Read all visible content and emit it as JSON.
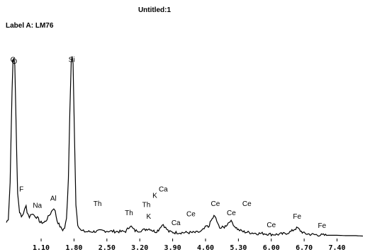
{
  "window": {
    "title": "Untitled:1",
    "label": "Label A: LM76"
  },
  "chart_data": {
    "type": "line",
    "title": "",
    "xlabel": "",
    "ylabel": "",
    "x_ticks": [
      "1.10",
      "1.80",
      "2.50",
      "3.20",
      "3.90",
      "4.60",
      "5.30",
      "6.00",
      "6.70",
      "7.40"
    ],
    "x_tick_values": [
      1.1,
      1.8,
      2.5,
      3.2,
      3.9,
      4.6,
      5.3,
      6.0,
      6.7,
      7.4
    ],
    "xlim": [
      0.36,
      7.95
    ],
    "ylim": [
      0,
      100
    ],
    "spectrum": [
      [
        0.36,
        8
      ],
      [
        0.4,
        10
      ],
      [
        0.44,
        30
      ],
      [
        0.48,
        80
      ],
      [
        0.5,
        96
      ],
      [
        0.52,
        98
      ],
      [
        0.54,
        94
      ],
      [
        0.58,
        45
      ],
      [
        0.6,
        24
      ],
      [
        0.64,
        14
      ],
      [
        0.68,
        11
      ],
      [
        0.72,
        13
      ],
      [
        0.75,
        15
      ],
      [
        0.78,
        17
      ],
      [
        0.8,
        14
      ],
      [
        0.85,
        11
      ],
      [
        0.9,
        13
      ],
      [
        0.95,
        12
      ],
      [
        1.0,
        11
      ],
      [
        1.04,
        10
      ],
      [
        1.08,
        8
      ],
      [
        1.12,
        8
      ],
      [
        1.16,
        8
      ],
      [
        1.2,
        9
      ],
      [
        1.25,
        11
      ],
      [
        1.3,
        13
      ],
      [
        1.34,
        15
      ],
      [
        1.37,
        16
      ],
      [
        1.4,
        14
      ],
      [
        1.44,
        9
      ],
      [
        1.48,
        7
      ],
      [
        1.52,
        5
      ],
      [
        1.56,
        4
      ],
      [
        1.6,
        5
      ],
      [
        1.64,
        10
      ],
      [
        1.68,
        32
      ],
      [
        1.71,
        68
      ],
      [
        1.74,
        96
      ],
      [
        1.76,
        99
      ],
      [
        1.78,
        95
      ],
      [
        1.81,
        55
      ],
      [
        1.84,
        18
      ],
      [
        1.88,
        7
      ],
      [
        1.95,
        3.5
      ],
      [
        2.05,
        3
      ],
      [
        2.2,
        3
      ],
      [
        2.4,
        3.5
      ],
      [
        2.6,
        3.2
      ],
      [
        2.8,
        3
      ],
      [
        2.9,
        3.2
      ],
      [
        2.96,
        5
      ],
      [
        3.0,
        6.5
      ],
      [
        3.04,
        5
      ],
      [
        3.1,
        3.5
      ],
      [
        3.2,
        3.5
      ],
      [
        3.3,
        4
      ],
      [
        3.36,
        4.5
      ],
      [
        3.42,
        4.5
      ],
      [
        3.48,
        3.5
      ],
      [
        3.54,
        3
      ],
      [
        3.6,
        4
      ],
      [
        3.65,
        6
      ],
      [
        3.7,
        7
      ],
      [
        3.75,
        5
      ],
      [
        3.82,
        3
      ],
      [
        3.95,
        2.5
      ],
      [
        4.1,
        2.5
      ],
      [
        4.25,
        2.5
      ],
      [
        4.4,
        2.5
      ],
      [
        4.5,
        3
      ],
      [
        4.57,
        4.5
      ],
      [
        4.62,
        6
      ],
      [
        4.66,
        5.5
      ],
      [
        4.72,
        9
      ],
      [
        4.78,
        11.5
      ],
      [
        4.82,
        10.5
      ],
      [
        4.86,
        7
      ],
      [
        4.92,
        5
      ],
      [
        5.0,
        5.5
      ],
      [
        5.06,
        7
      ],
      [
        5.12,
        9
      ],
      [
        5.17,
        8
      ],
      [
        5.22,
        6
      ],
      [
        5.3,
        4
      ],
      [
        5.4,
        3
      ],
      [
        5.55,
        2.5
      ],
      [
        5.7,
        2
      ],
      [
        5.85,
        2
      ],
      [
        6.0,
        1.5
      ],
      [
        6.15,
        1.5
      ],
      [
        6.3,
        2
      ],
      [
        6.42,
        3
      ],
      [
        6.5,
        4.5
      ],
      [
        6.56,
        5
      ],
      [
        6.62,
        3.5
      ],
      [
        6.7,
        2
      ],
      [
        6.85,
        1.5
      ],
      [
        7.0,
        1.2
      ],
      [
        7.2,
        1
      ],
      [
        7.4,
        1
      ],
      [
        7.6,
        0.8
      ],
      [
        7.8,
        0.8
      ],
      [
        7.95,
        0.6
      ]
    ],
    "annotations": [
      {
        "text": "C",
        "x": 0.5,
        "y": 96
      },
      {
        "text": "O",
        "x": 0.53,
        "y": 95
      },
      {
        "text": "F",
        "x": 0.68,
        "y": 25
      },
      {
        "text": "Na",
        "x": 1.02,
        "y": 16
      },
      {
        "text": "Al",
        "x": 1.36,
        "y": 20
      },
      {
        "text": "Si",
        "x": 1.75,
        "y": 96
      },
      {
        "text": "Th",
        "x": 2.3,
        "y": 17
      },
      {
        "text": "Th",
        "x": 2.97,
        "y": 12
      },
      {
        "text": "Th",
        "x": 3.34,
        "y": 16.5
      },
      {
        "text": "K",
        "x": 3.39,
        "y": 10
      },
      {
        "text": "K",
        "x": 3.52,
        "y": 21.5
      },
      {
        "text": "Ca",
        "x": 3.7,
        "y": 25
      },
      {
        "text": "Ca",
        "x": 3.97,
        "y": 6.5
      },
      {
        "text": "Ce",
        "x": 4.29,
        "y": 11.5
      },
      {
        "text": "Ce",
        "x": 4.81,
        "y": 17
      },
      {
        "text": "Ce",
        "x": 5.15,
        "y": 12
      },
      {
        "text": "Ce",
        "x": 5.48,
        "y": 17
      },
      {
        "text": "Ce",
        "x": 6.0,
        "y": 5.5
      },
      {
        "text": "Fe",
        "x": 6.55,
        "y": 10
      },
      {
        "text": "Fe",
        "x": 7.08,
        "y": 5
      }
    ],
    "line_color": "#000000",
    "grid": false
  }
}
